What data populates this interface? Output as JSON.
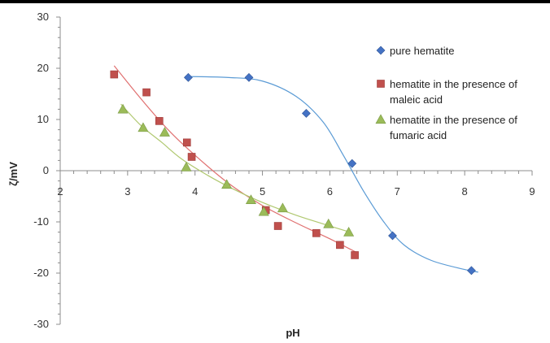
{
  "chart_data": {
    "type": "scatter",
    "xlabel": "pH",
    "ylabel": "ζ/mV",
    "xlim": [
      2,
      9
    ],
    "ylim": [
      -30,
      30
    ],
    "xticks": [
      2,
      3,
      4,
      5,
      6,
      7,
      8,
      9
    ],
    "yticks": [
      -30,
      -20,
      -10,
      0,
      10,
      20,
      30
    ],
    "legend_position": "right",
    "series": [
      {
        "name": "pure hematite",
        "marker": "diamond",
        "color": "#4472C4",
        "trend_color": "#5B9BD5",
        "legend_lines": [
          "pure hematite"
        ],
        "points": [
          [
            3.9,
            18.2
          ],
          [
            4.8,
            18.2
          ],
          [
            5.65,
            11.2
          ],
          [
            6.33,
            1.4
          ],
          [
            6.93,
            -12.7
          ],
          [
            8.1,
            -19.5
          ]
        ],
        "trend": [
          [
            3.85,
            18.4
          ],
          [
            4.5,
            18.2
          ],
          [
            5.0,
            17.5
          ],
          [
            5.5,
            14.5
          ],
          [
            5.9,
            9.5
          ],
          [
            6.2,
            3.0
          ],
          [
            6.5,
            -4.0
          ],
          [
            6.8,
            -10.0
          ],
          [
            7.1,
            -14.5
          ],
          [
            7.5,
            -17.5
          ],
          [
            8.0,
            -19.3
          ],
          [
            8.2,
            -19.8
          ]
        ]
      },
      {
        "name": "hematite in the presence of maleic acid",
        "marker": "square",
        "color": "#C0504D",
        "trend_color": "#E07070",
        "legend_lines": [
          "hematite in the presence of",
          "maleic acid"
        ],
        "points": [
          [
            2.8,
            18.8
          ],
          [
            3.28,
            15.3
          ],
          [
            3.47,
            9.7
          ],
          [
            3.88,
            5.5
          ],
          [
            3.95,
            2.7
          ],
          [
            5.05,
            -7.7
          ],
          [
            5.23,
            -10.8
          ],
          [
            5.8,
            -12.2
          ],
          [
            6.15,
            -14.5
          ],
          [
            6.37,
            -16.5
          ]
        ],
        "trend": [
          [
            2.8,
            20.5
          ],
          [
            3.2,
            14.0
          ],
          [
            3.6,
            8.0
          ],
          [
            4.0,
            3.0
          ],
          [
            4.5,
            -2.5
          ],
          [
            5.0,
            -6.8
          ],
          [
            5.5,
            -10.2
          ],
          [
            6.0,
            -13.3
          ],
          [
            6.4,
            -16.0
          ]
        ]
      },
      {
        "name": "hematite in the presence of fumaric acid",
        "marker": "triangle",
        "color": "#9BBB59",
        "trend_color": "#B0C870",
        "legend_lines": [
          "hematite in the presence of",
          "fumaric acid"
        ],
        "points": [
          [
            2.93,
            12.0
          ],
          [
            3.23,
            8.4
          ],
          [
            3.55,
            7.5
          ],
          [
            3.87,
            0.7
          ],
          [
            4.47,
            -2.7
          ],
          [
            4.83,
            -5.7
          ],
          [
            5.02,
            -8.0
          ],
          [
            5.3,
            -7.3
          ],
          [
            5.98,
            -10.4
          ],
          [
            6.28,
            -12.0
          ]
        ],
        "trend": [
          [
            2.9,
            13.0
          ],
          [
            3.2,
            8.8
          ],
          [
            3.5,
            5.6
          ],
          [
            3.8,
            2.3
          ],
          [
            4.2,
            -1.0
          ],
          [
            4.6,
            -3.8
          ],
          [
            5.0,
            -6.2
          ],
          [
            5.5,
            -8.7
          ],
          [
            6.0,
            -10.8
          ],
          [
            6.3,
            -12.0
          ]
        ]
      }
    ]
  }
}
